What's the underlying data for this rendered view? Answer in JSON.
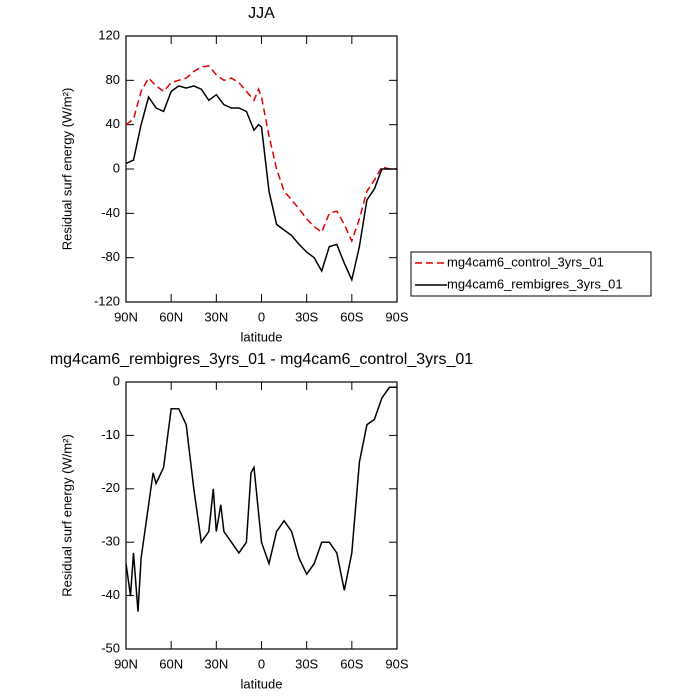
{
  "chart_data": [
    {
      "type": "line",
      "title": "JJA",
      "xlabel": "latitude",
      "ylabel": "Residual surf energy (W/m²)",
      "x": [
        90,
        85,
        80,
        75,
        70,
        65,
        60,
        55,
        50,
        45,
        40,
        35,
        30,
        25,
        20,
        15,
        10,
        5,
        2,
        0,
        -5,
        -10,
        -15,
        -20,
        -25,
        -30,
        -35,
        -40,
        -45,
        -50,
        -55,
        -60,
        -65,
        -70,
        -75,
        -80,
        -85,
        -90
      ],
      "series": [
        {
          "name": "mg4cam6_control_3yrs_01",
          "color": "#e00000",
          "line_style": "dashed",
          "values": [
            40,
            45,
            70,
            82,
            75,
            70,
            78,
            80,
            82,
            88,
            92,
            93,
            85,
            80,
            82,
            78,
            70,
            62,
            72,
            65,
            30,
            0,
            -20,
            -28,
            -36,
            -45,
            -52,
            -57,
            -40,
            -38,
            -50,
            -65,
            -45,
            -20,
            -10,
            2,
            0,
            0
          ]
        },
        {
          "name": "mg4cam6_rembigres_3yrs_01",
          "color": "#000000",
          "line_style": "solid",
          "values": [
            5,
            8,
            40,
            65,
            55,
            52,
            70,
            75,
            73,
            75,
            72,
            62,
            67,
            58,
            55,
            55,
            52,
            35,
            40,
            38,
            -20,
            -50,
            -55,
            -60,
            -68,
            -75,
            -80,
            -92,
            -70,
            -68,
            -85,
            -100,
            -70,
            -28,
            -18,
            0,
            0,
            0
          ]
        }
      ],
      "xlim": [
        90,
        -90
      ],
      "xticks": [
        {
          "value": 90,
          "label": "90N"
        },
        {
          "value": 60,
          "label": "60N"
        },
        {
          "value": 30,
          "label": "30N"
        },
        0,
        {
          "value": -30,
          "label": "30S"
        },
        {
          "value": -60,
          "label": "60S"
        },
        {
          "value": -90,
          "label": "90S"
        }
      ],
      "ylim": [
        -120,
        120
      ],
      "yticks": [
        -120,
        -80,
        -40,
        0,
        40,
        80,
        120
      ],
      "legend": "right",
      "grid": false
    },
    {
      "type": "line",
      "title": "mg4cam6_rembigres_3yrs_01 - mg4cam6_control_3yrs_01",
      "xlabel": "latitude",
      "ylabel": "Residual surf energy (W/m²)",
      "x": [
        90,
        87,
        85,
        82,
        80,
        75,
        72,
        70,
        65,
        60,
        55,
        50,
        45,
        40,
        35,
        32,
        30,
        27,
        25,
        20,
        15,
        10,
        7,
        5,
        0,
        -5,
        -10,
        -15,
        -20,
        -25,
        -30,
        -35,
        -40,
        -45,
        -50,
        -55,
        -60,
        -65,
        -70,
        -75,
        -80,
        -85,
        -90
      ],
      "values": [
        -34,
        -40,
        -32,
        -43,
        -33,
        -23,
        -17,
        -19,
        -16,
        -5,
        -5,
        -8,
        -20,
        -30,
        -28,
        -20,
        -28,
        -23,
        -28,
        -30,
        -32,
        -30,
        -17,
        -16,
        -30,
        -34,
        -28,
        -26,
        -28,
        -33,
        -36,
        -34,
        -30,
        -30,
        -32,
        -39,
        -32,
        -15,
        -8,
        -7,
        -3,
        -1,
        -1
      ],
      "color": "#000000",
      "xlim": [
        90,
        -90
      ],
      "xticks": [
        {
          "value": 90,
          "label": "90N"
        },
        {
          "value": 60,
          "label": "60N"
        },
        {
          "value": 30,
          "label": "30N"
        },
        0,
        {
          "value": -30,
          "label": "30S"
        },
        {
          "value": -60,
          "label": "60S"
        },
        {
          "value": -90,
          "label": "90S"
        }
      ],
      "ylim": [
        -50,
        0
      ],
      "yticks": [
        -50,
        -40,
        -30,
        -20,
        -10,
        0
      ],
      "grid": false
    }
  ]
}
